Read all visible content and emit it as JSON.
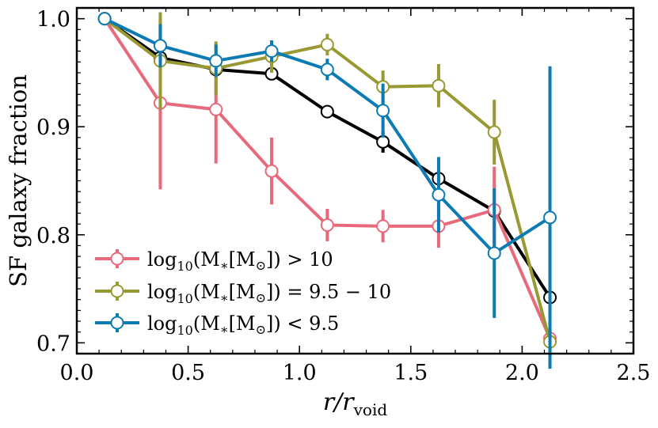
{
  "chart_data": {
    "type": "line",
    "xlabel": "r/r",
    "xlabel_sub": "void",
    "ylabel": "SF galaxy fraction",
    "xlim": [
      0.0,
      2.5
    ],
    "ylim": [
      0.69,
      1.01
    ],
    "xticks": [
      "0.0",
      "0.5",
      "1.0",
      "1.5",
      "2.0",
      "2.5"
    ],
    "yticks": [
      "0.7",
      "0.8",
      "0.9",
      "1.0"
    ],
    "legend_position": "lower-left",
    "grid": false,
    "total": {
      "color": "#000000",
      "x": [
        0.125,
        0.375,
        0.625,
        0.875,
        1.125,
        1.375,
        1.625,
        1.875,
        2.125
      ],
      "y": [
        1.0,
        0.964,
        0.953,
        0.949,
        0.914,
        0.886,
        0.852,
        0.822,
        0.742
      ],
      "err": [
        0,
        0,
        0,
        0,
        0,
        0.01,
        0,
        0,
        0
      ]
    },
    "series": [
      {
        "name": "log10(M*[M⊙]) > 10",
        "color": "#e8697c",
        "x": [
          0.125,
          0.375,
          0.625,
          0.875,
          1.125,
          1.375,
          1.625,
          1.875,
          2.125
        ],
        "y": [
          1.0,
          0.922,
          0.916,
          0.859,
          0.809,
          0.808,
          0.808,
          0.823,
          0.704
        ],
        "err": [
          0,
          0.08,
          0.05,
          0.031,
          0.015,
          0.015,
          0.02,
          0.04,
          0.01
        ]
      },
      {
        "name": "log10(M*[M⊙]) = 9.5 − 10",
        "color": "#999933",
        "x": [
          0.125,
          0.375,
          0.625,
          0.875,
          1.125,
          1.375,
          1.625,
          1.875,
          2.125
        ],
        "y": [
          1.0,
          0.961,
          0.954,
          0.965,
          0.976,
          0.937,
          0.938,
          0.895,
          0.701
        ],
        "err": [
          0,
          0.045,
          0.025,
          0.015,
          0.01,
          0.015,
          0.02,
          0.03,
          0.01
        ]
      },
      {
        "name": "log10(M*[M⊙]) < 9.5",
        "color": "#0c7bb3",
        "x": [
          0.125,
          0.375,
          0.625,
          0.875,
          1.125,
          1.375,
          1.625,
          1.875,
          2.125
        ],
        "y": [
          1.0,
          0.975,
          0.961,
          0.97,
          0.953,
          0.915,
          0.837,
          0.783,
          0.816
        ],
        "err": [
          0,
          0.02,
          0.015,
          0.01,
          0.01,
          0.025,
          0.035,
          0.06,
          0.14
        ]
      }
    ],
    "legend": [
      {
        "pre": "log",
        "sub": "10",
        "mid": "(M",
        "star": "∗",
        "bracket": "[M",
        "sun": "⊙",
        "post": "]) > 10"
      },
      {
        "pre": "log",
        "sub": "10",
        "mid": "(M",
        "star": "∗",
        "bracket": "[M",
        "sun": "⊙",
        "post": "]) = 9.5 − 10"
      },
      {
        "pre": "log",
        "sub": "10",
        "mid": "(M",
        "star": "∗",
        "bracket": "[M",
        "sun": "⊙",
        "post": "]) < 9.5"
      }
    ]
  }
}
